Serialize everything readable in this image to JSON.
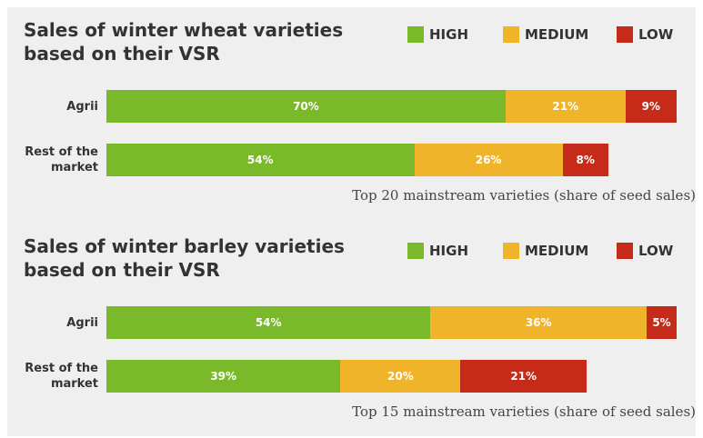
{
  "chart_data": [
    {
      "type": "bar",
      "title": "Sales of winter wheat varieties based on their VSR",
      "categories": [
        "Agrii",
        "Rest of the market"
      ],
      "series": [
        {
          "name": "HIGH",
          "color": "#7ab929",
          "values": [
            70,
            54
          ],
          "value_labels": [
            "70%",
            "54%"
          ]
        },
        {
          "name": "MEDIUM",
          "color": "#f0b42a",
          "values": [
            21,
            26
          ],
          "value_labels": [
            "21%",
            "26%"
          ]
        },
        {
          "name": "LOW",
          "color": "#c62a19",
          "values": [
            9,
            8
          ],
          "value_labels": [
            "9%",
            "8%"
          ]
        }
      ],
      "xlim": [
        0,
        100
      ],
      "note": "Top 20 mainstream varieties (share of seed sales)"
    },
    {
      "type": "bar",
      "title": "Sales of winter barley varieties based on their VSR",
      "categories": [
        "Agrii",
        "Rest of the market"
      ],
      "series": [
        {
          "name": "HIGH",
          "color": "#7ab929",
          "values": [
            54,
            39
          ],
          "value_labels": [
            "54%",
            "39%"
          ]
        },
        {
          "name": "MEDIUM",
          "color": "#f0b42a",
          "values": [
            36,
            20
          ],
          "value_labels": [
            "36%",
            "20%"
          ]
        },
        {
          "name": "LOW",
          "color": "#c62a19",
          "values": [
            5,
            21
          ],
          "value_labels": [
            "5%",
            "21%"
          ]
        }
      ],
      "xlim": [
        0,
        95
      ],
      "note": "Top 15 mainstream varieties (share of seed sales)"
    }
  ]
}
